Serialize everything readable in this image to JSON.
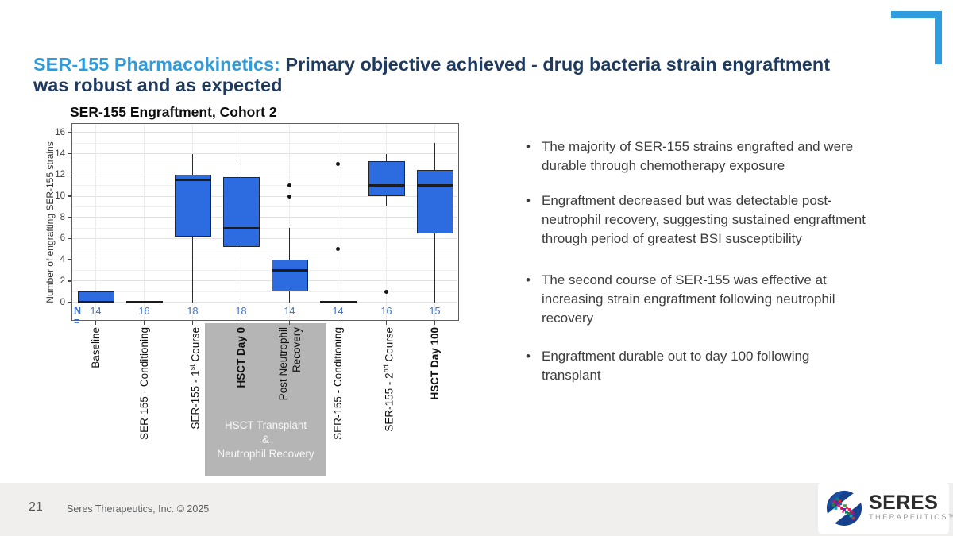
{
  "colors": {
    "accent_blue": "#2f9cdd",
    "navy": "#1f3a5f",
    "box_fill": "#2d6be0",
    "n_text": "#3b6fc4",
    "gray_box": "#b5b5b5",
    "footer_band": "#f0efee"
  },
  "title": {
    "highlight": "SER-155 Pharmacokinetics:",
    "rest": " Primary objective achieved -  drug bacteria strain engraftment\nwas robust and as expected"
  },
  "chart_data": {
    "type": "box",
    "title": "SER-155 Engraftment, Cohort 2",
    "ylabel": "Number of engrafting SER-155 strains",
    "ylim": [
      0,
      16
    ],
    "yticks": [
      0,
      2,
      4,
      6,
      8,
      10,
      12,
      14,
      16
    ],
    "grid": true,
    "n_prefix": "N =",
    "groups": [
      {
        "name": "Baseline",
        "label_lines": [
          [
            {
              "t": "Baseline"
            }
          ]
        ],
        "bold": false,
        "n": 14,
        "whisker_low": 0,
        "q1": 0,
        "median": 0,
        "q3": 1,
        "whisker_high": 1,
        "outliers": []
      },
      {
        "name": "SER-155 - Conditioning",
        "label_lines": [
          [
            {
              "t": "SER-155 - Conditioning"
            }
          ]
        ],
        "bold": false,
        "n": 16,
        "whisker_low": 0,
        "q1": 0,
        "median": 0,
        "q3": 0,
        "whisker_high": 0,
        "outliers": []
      },
      {
        "name": "SER-155 - 1st Course",
        "label_lines": [
          [
            {
              "t": "SER-155 -  1"
            },
            {
              "t": "st",
              "sup": true
            },
            {
              "t": " Course"
            }
          ]
        ],
        "bold": false,
        "n": 18,
        "whisker_low": 0,
        "q1": 6.2,
        "median": 11.5,
        "q3": 12,
        "whisker_high": 14,
        "outliers": []
      },
      {
        "name": "HSCT Day 0",
        "label_lines": [
          [
            {
              "t": "HSCT Day 0"
            }
          ]
        ],
        "bold": true,
        "n": 18,
        "whisker_low": 0,
        "q1": 5.2,
        "median": 7,
        "q3": 11.8,
        "whisker_high": 13,
        "outliers": []
      },
      {
        "name": "Post Neutrophil Recovery",
        "label_lines": [
          [
            {
              "t": "Post Neutrophil"
            }
          ],
          [
            {
              "t": "Recovery"
            }
          ]
        ],
        "bold": false,
        "n": 14,
        "whisker_low": 0,
        "q1": 1,
        "median": 3,
        "q3": 4,
        "whisker_high": 7,
        "outliers": [
          10,
          11
        ]
      },
      {
        "name": "SER-155 - Conditioning",
        "label_lines": [
          [
            {
              "t": "SER-155 - Conditioning"
            }
          ]
        ],
        "bold": false,
        "n": 14,
        "whisker_low": 0,
        "q1": 0,
        "median": 0,
        "q3": 0,
        "whisker_high": 0,
        "outliers": [
          5,
          13
        ]
      },
      {
        "name": "SER-155 - 2nd Course",
        "label_lines": [
          [
            {
              "t": "SER-155 - 2"
            },
            {
              "t": "nd",
              "sup": true
            },
            {
              "t": " Course"
            }
          ]
        ],
        "bold": false,
        "n": 16,
        "whisker_low": 9,
        "q1": 10,
        "median": 11,
        "q3": 13.3,
        "whisker_high": 14,
        "outliers": [
          1
        ]
      },
      {
        "name": "HSCT Day 100",
        "label_lines": [
          [
            {
              "t": "HSCT Day 100"
            }
          ]
        ],
        "bold": true,
        "n": 15,
        "whisker_low": 0,
        "q1": 6.5,
        "median": 11,
        "q3": 12.5,
        "whisker_high": 15,
        "outliers": []
      }
    ],
    "annotation": {
      "text": "HSCT Transplant\n&\nNeutrophil Recovery",
      "covers_groups": [
        "HSCT Day 0",
        "Post Neutrophil Recovery"
      ]
    }
  },
  "bullets": [
    "The majority of SER-155 strains engrafted and were\ndurable through chemotherapy exposure",
    "Engraftment decreased but was detectable post-\nneutrophil recovery, suggesting sustained engraftment\nthrough period of greatest BSI susceptibility",
    "The second course of SER-155 was effective at\nincreasing strain engraftment following neutrophil\nrecovery",
    "Engraftment durable out to day 100 following\ntransplant"
  ],
  "footer": {
    "page_number": "21",
    "copyright": "Seres Therapeutics, Inc. © 2025",
    "logo_name": "SERES",
    "logo_sub": "THERAPEUTICS™"
  }
}
